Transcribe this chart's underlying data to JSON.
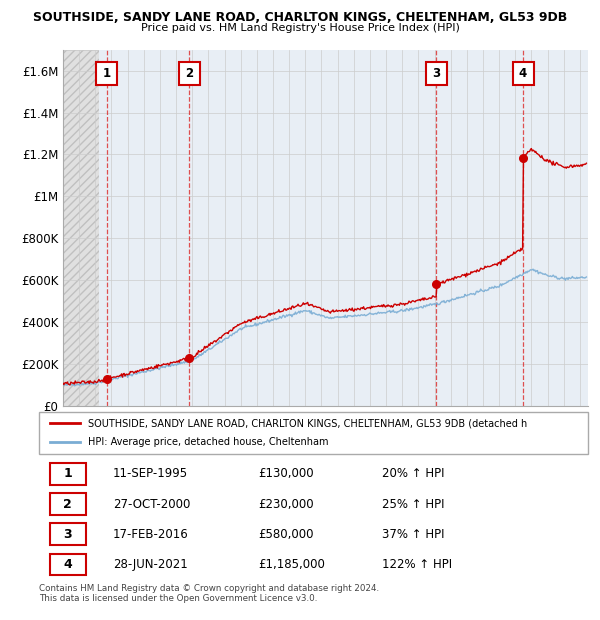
{
  "title1": "SOUTHSIDE, SANDY LANE ROAD, CHARLTON KINGS, CHELTENHAM, GL53 9DB",
  "title2": "Price paid vs. HM Land Registry's House Price Index (HPI)",
  "ylim": [
    0,
    1700000
  ],
  "yticks": [
    0,
    200000,
    400000,
    600000,
    800000,
    1000000,
    1200000,
    1400000,
    1600000
  ],
  "ytick_labels": [
    "£0",
    "£200K",
    "£400K",
    "£600K",
    "£800K",
    "£1M",
    "£1.2M",
    "£1.4M",
    "£1.6M"
  ],
  "xlim_start": 1993.0,
  "xlim_end": 2025.5,
  "sale_dates": [
    1995.7,
    2000.82,
    2016.12,
    2021.48
  ],
  "sale_prices": [
    130000,
    230000,
    580000,
    1185000
  ],
  "sale_labels": [
    "1",
    "2",
    "3",
    "4"
  ],
  "sale_color": "#cc0000",
  "hpi_line_color": "#7aadd4",
  "legend_entries": [
    "SOUTHSIDE, SANDY LANE ROAD, CHARLTON KINGS, CHELTENHAM, GL53 9DB (detached h",
    "HPI: Average price, detached house, Cheltenham"
  ],
  "table_data": [
    [
      "1",
      "11-SEP-1995",
      "£130,000",
      "20% ↑ HPI"
    ],
    [
      "2",
      "27-OCT-2000",
      "£230,000",
      "25% ↑ HPI"
    ],
    [
      "3",
      "17-FEB-2016",
      "£580,000",
      "37% ↑ HPI"
    ],
    [
      "4",
      "28-JUN-2021",
      "£1,185,000",
      "122% ↑ HPI"
    ]
  ],
  "footer": "Contains HM Land Registry data © Crown copyright and database right 2024.\nThis data is licensed under the Open Government Licence v3.0.",
  "grid_color": "#cccccc",
  "dashed_color": "#dd3333",
  "hatch_color": "#d8d8d8",
  "bg_color": "#e8eef5"
}
